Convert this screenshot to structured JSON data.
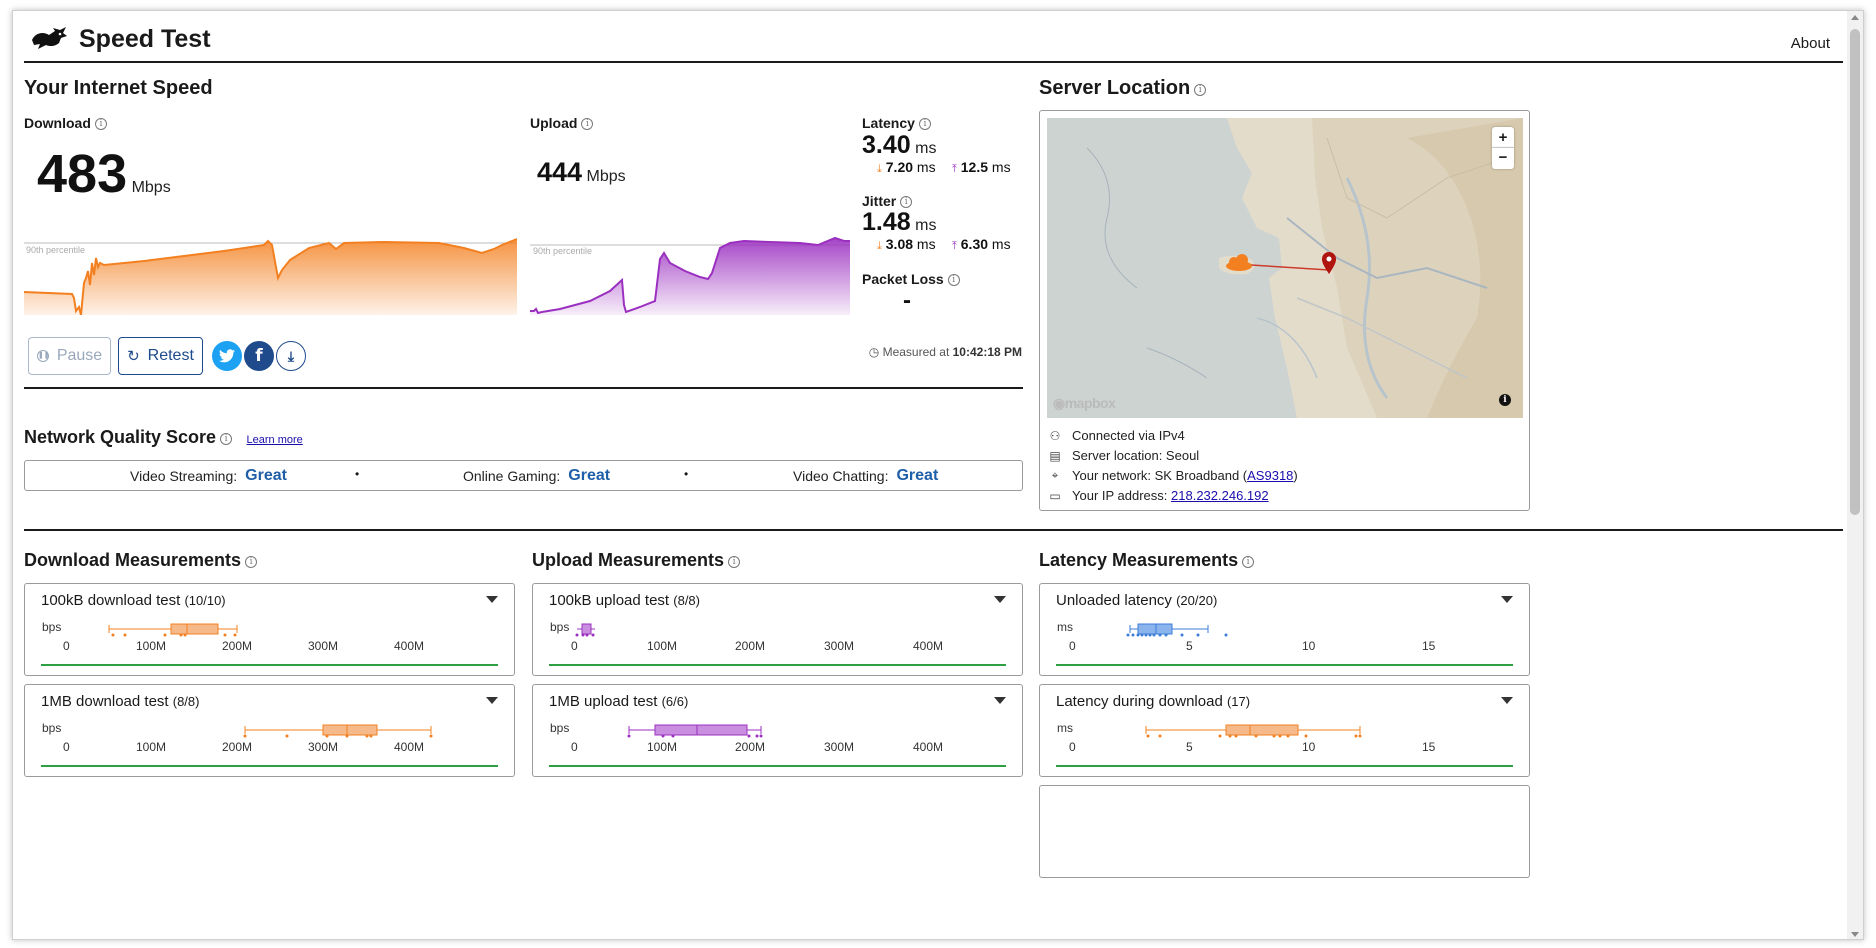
{
  "header": {
    "title": "Speed Test",
    "about": "About"
  },
  "speed": {
    "section_title": "Your Internet Speed",
    "download": {
      "label": "Download",
      "value": "483",
      "unit": "Mbps",
      "percentile": "90th percentile"
    },
    "upload": {
      "label": "Upload",
      "value": "444",
      "unit": "Mbps",
      "percentile": "90th percentile"
    },
    "latency": {
      "label": "Latency",
      "value": "3.40",
      "unit": "ms",
      "down": "7.20",
      "down_unit": "ms",
      "up": "12.5",
      "up_unit": "ms"
    },
    "jitter": {
      "label": "Jitter",
      "value": "1.48",
      "unit": "ms",
      "down": "3.08",
      "down_unit": "ms",
      "up": "6.30",
      "up_unit": "ms"
    },
    "packet_loss": {
      "label": "Packet Loss",
      "value": "-"
    },
    "buttons": {
      "pause": "Pause",
      "retest": "Retest"
    },
    "measured_prefix": "Measured at",
    "measured_time": "10:42:18 PM"
  },
  "quality": {
    "title": "Network Quality Score",
    "learn_more": "Learn more",
    "items": [
      {
        "label": "Video Streaming:",
        "value": "Great"
      },
      {
        "label": "Online Gaming:",
        "value": "Great"
      },
      {
        "label": "Video Chatting:",
        "value": "Great"
      }
    ],
    "separator": "•"
  },
  "server": {
    "title": "Server Location",
    "map_attribution": "mapbox",
    "zoom_in": "+",
    "zoom_out": "−",
    "info_glyph": "i",
    "rows": {
      "connected": "Connected via IPv4",
      "location": "Server location: Seoul",
      "network_prefix": "Your network: SK Broadband (",
      "network_as": "AS9318",
      "network_suffix": ")",
      "ip_prefix": "Your IP address: ",
      "ip": "218.232.246.192"
    }
  },
  "measurements": {
    "download": {
      "title": "Download Measurements",
      "unit": "bps",
      "ticks": [
        "0",
        "100M",
        "200M",
        "300M",
        "400M"
      ],
      "tests": [
        {
          "name": "100kB download test",
          "count": "(10/10)"
        },
        {
          "name": "1MB download test",
          "count": "(8/8)"
        }
      ]
    },
    "upload": {
      "title": "Upload Measurements",
      "unit": "bps",
      "ticks": [
        "0",
        "100M",
        "200M",
        "300M",
        "400M"
      ],
      "tests": [
        {
          "name": "100kB upload test",
          "count": "(8/8)"
        },
        {
          "name": "1MB upload test",
          "count": "(6/6)"
        }
      ]
    },
    "latency": {
      "title": "Latency Measurements",
      "unit": "ms",
      "ticks": [
        "0",
        "5",
        "10",
        "15"
      ],
      "tests": [
        {
          "name": "Unloaded latency",
          "count": "(20/20)"
        },
        {
          "name": "Latency during download",
          "count": "(17)"
        }
      ]
    }
  },
  "colors": {
    "download": "#f38020",
    "upload": "#9b30c0",
    "latency": "#3b7dd8",
    "accent": "#1f4a8c",
    "great": "#1f5fa8"
  }
}
